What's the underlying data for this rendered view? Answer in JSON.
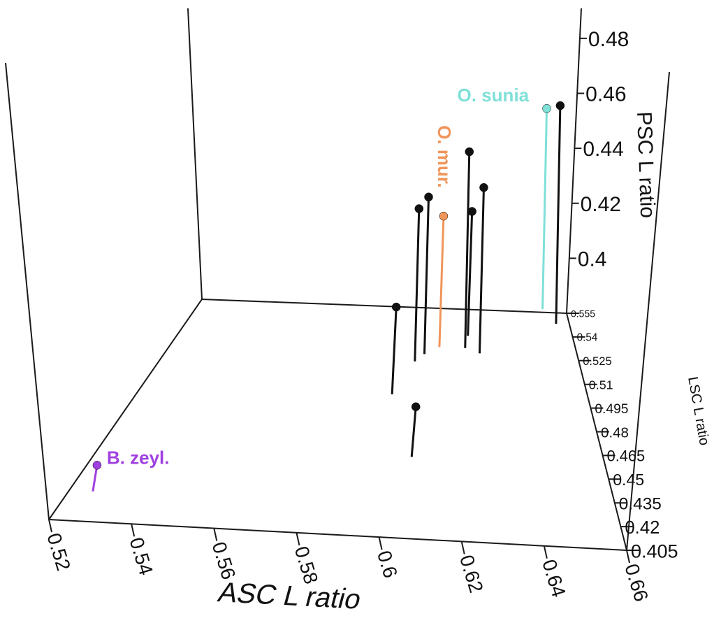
{
  "chart_data": {
    "type": "scatter",
    "subtype": "3d-stem",
    "title": "",
    "axes": {
      "x": {
        "label": "ASC L ratio",
        "range": [
          0.52,
          0.66
        ],
        "ticks": [
          "0.52",
          "0.54",
          "0.56",
          "0.58",
          "0.6",
          "0.62",
          "0.64",
          "0.66"
        ]
      },
      "y": {
        "label": "LSC L ratio",
        "range": [
          0.405,
          0.555
        ],
        "ticks": [
          "0.405",
          "0.42",
          "0.435",
          "0.45",
          "0.465",
          "0.48",
          "0.495",
          "0.51",
          "0.525",
          "0.54",
          "0.555"
        ]
      },
      "z": {
        "label": "PSC L ratio",
        "range": [
          0.38,
          0.48
        ],
        "ticks": [
          "0.4",
          "0.42",
          "0.44",
          "0.46",
          "0.48"
        ]
      }
    },
    "grid": false,
    "legend": "none",
    "points": [
      {
        "x": 0.526,
        "y": 0.425,
        "z": 0.392,
        "label": "B. zeyl.",
        "color": "#a040e0"
      },
      {
        "x": 0.612,
        "y": 0.53,
        "z": 0.44,
        "label": "O. mur.",
        "color": "#f0955a"
      },
      {
        "x": 0.651,
        "y": 0.557,
        "z": 0.472,
        "label": "O. sunia",
        "color": "#7fe0d8"
      },
      {
        "x": 0.606,
        "y": 0.458,
        "z": 0.403,
        "label": "",
        "color": "#111111"
      },
      {
        "x": 0.598,
        "y": 0.498,
        "z": 0.42,
        "label": "",
        "color": "#111111"
      },
      {
        "x": 0.604,
        "y": 0.52,
        "z": 0.45,
        "label": "",
        "color": "#111111"
      },
      {
        "x": 0.607,
        "y": 0.525,
        "z": 0.452,
        "label": "",
        "color": "#111111"
      },
      {
        "x": 0.621,
        "y": 0.53,
        "z": 0.47,
        "label": "",
        "color": "#111111"
      },
      {
        "x": 0.626,
        "y": 0.527,
        "z": 0.456,
        "label": "",
        "color": "#111111"
      },
      {
        "x": 0.622,
        "y": 0.538,
        "z": 0.437,
        "label": "",
        "color": "#111111"
      },
      {
        "x": 0.655,
        "y": 0.548,
        "z": 0.48,
        "label": "",
        "color": "#111111"
      }
    ]
  }
}
